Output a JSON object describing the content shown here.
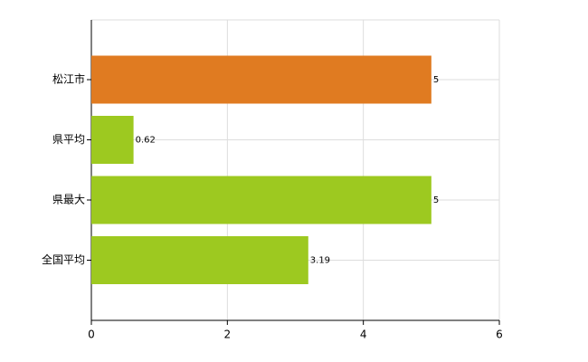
{
  "chart_data": {
    "type": "hbar",
    "categories": [
      "松江市",
      "県平均",
      "県最大",
      "全国平均"
    ],
    "values": [
      5,
      0.62,
      5,
      3.19
    ],
    "colors": [
      "#e07b21",
      "#9dc920",
      "#9dc920",
      "#9dc920"
    ],
    "xlim": [
      0,
      6
    ],
    "xticks": [
      0,
      2,
      4,
      6
    ],
    "grid": true
  }
}
